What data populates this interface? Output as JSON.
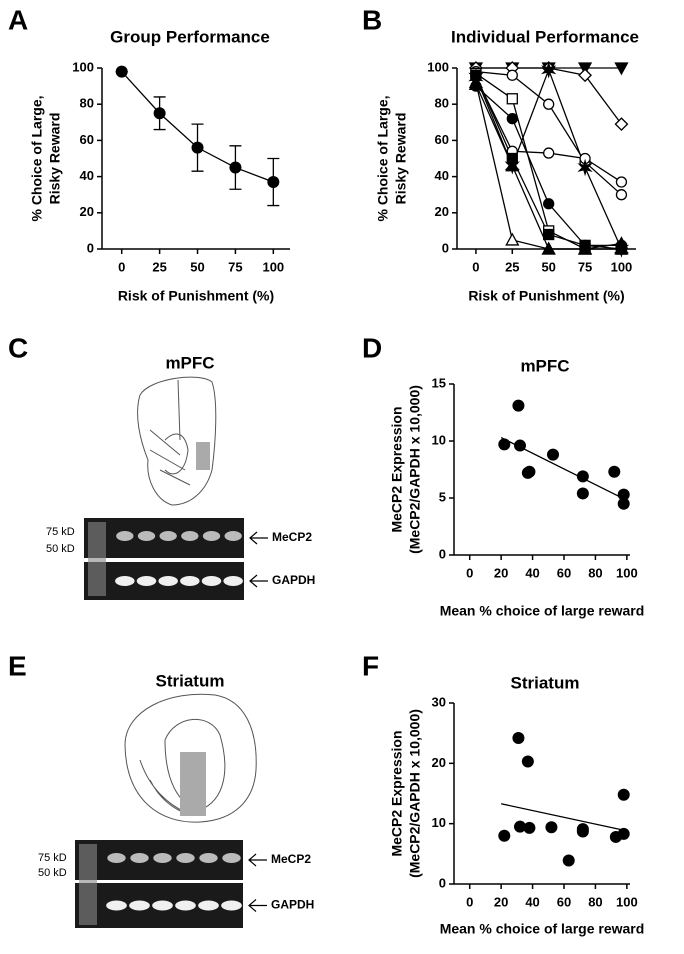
{
  "panel_labels": [
    "A",
    "B",
    "C",
    "D",
    "E",
    "F"
  ],
  "blots": [
    {
      "title": "mPFC",
      "markers": [
        "75 kD",
        "50 kD"
      ],
      "bands": [
        "MeCP2",
        "GAPDH"
      ]
    },
    {
      "title": "Striatum",
      "markers": [
        "75 kD",
        "50 kD"
      ],
      "bands": [
        "MeCP2",
        "GAPDH"
      ]
    }
  ],
  "chart_data": [
    {
      "type": "line",
      "title": "Group Performance",
      "y_label": [
        "% Choice of Large,",
        "Risky Reward"
      ],
      "x_label": "Risk of Punishment (%)",
      "x": [
        0,
        25,
        50,
        75,
        100
      ],
      "values": [
        98,
        75,
        56,
        45,
        37
      ],
      "errors": [
        0,
        9,
        13,
        12,
        13
      ],
      "color": "#000000",
      "xlim": [
        -13,
        111
      ],
      "ylim": [
        0,
        100
      ],
      "xticks": [
        0,
        25,
        50,
        75,
        100
      ],
      "yticks": [
        0,
        20,
        40,
        60,
        80,
        100
      ]
    },
    {
      "type": "multiline",
      "title": "Individual Performance",
      "y_label": [
        "% Choice of Large,",
        "Risky Reward"
      ],
      "x_label": "Risk of Punishment (%)",
      "x": [
        0,
        25,
        50,
        75,
        100
      ],
      "series": [
        {
          "marker": "triangle-down",
          "filled": true,
          "color": "#000000",
          "values": [
            100,
            100,
            100,
            100,
            100
          ]
        },
        {
          "marker": "diamond",
          "filled": false,
          "color": "#000000",
          "values": [
            100,
            100,
            100,
            96,
            69
          ]
        },
        {
          "marker": "circle",
          "filled": false,
          "color": "#000000",
          "values": [
            98,
            96,
            80,
            48,
            30
          ]
        },
        {
          "marker": "circle",
          "filled": false,
          "color": "#000000",
          "values": [
            95,
            54,
            53,
            50,
            37
          ]
        },
        {
          "marker": "circle",
          "filled": true,
          "color": "#000000",
          "values": [
            90,
            72,
            25,
            2,
            2
          ]
        },
        {
          "marker": "square",
          "filled": false,
          "color": "#000000",
          "values": [
            97,
            83,
            10,
            0,
            0
          ]
        },
        {
          "marker": "star",
          "filled": true,
          "color": "#000000",
          "values": [
            95,
            46,
            99,
            45,
            0
          ]
        },
        {
          "marker": "triangle",
          "filled": false,
          "color": "#000000",
          "values": [
            92,
            5,
            0,
            0,
            0
          ]
        },
        {
          "marker": "triangle",
          "filled": true,
          "color": "#000000",
          "values": [
            91,
            46,
            0,
            0,
            3
          ]
        },
        {
          "marker": "square",
          "filled": true,
          "color": "#000000",
          "values": [
            96,
            50,
            8,
            2,
            0
          ]
        }
      ],
      "xlim": [
        -13,
        110
      ],
      "ylim": [
        0,
        100
      ],
      "xticks": [
        0,
        25,
        50,
        75,
        100
      ],
      "yticks": [
        0,
        20,
        40,
        60,
        80,
        100
      ]
    },
    {
      "type": "scatter",
      "title": "mPFC",
      "y_label": [
        "MeCP2 Expression",
        "(MeCP2/GAPDH x 10,000)"
      ],
      "x_label": "Mean % choice of large reward",
      "x": [
        22,
        31,
        32,
        37,
        38,
        53,
        72,
        72,
        92,
        98,
        98
      ],
      "values": [
        9.7,
        13.1,
        9.6,
        7.2,
        7.3,
        8.8,
        6.9,
        5.4,
        7.3,
        5.3,
        4.5
      ],
      "color": "#000000",
      "fit": {
        "x": [
          20,
          100
        ],
        "y": [
          10.3,
          4.8
        ]
      },
      "xlim": [
        -10,
        102
      ],
      "ylim": [
        0,
        15
      ],
      "xticks": [
        0,
        20,
        40,
        60,
        80,
        100
      ],
      "yticks": [
        0,
        5,
        10,
        15
      ]
    },
    {
      "type": "scatter",
      "title": "Striatum",
      "y_label": [
        "MeCP2 Expression",
        "(MeCP2/GAPDH x 10,000)"
      ],
      "x_label": "Mean % choice of large reward",
      "x": [
        22,
        31,
        32,
        37,
        38,
        52,
        63,
        72,
        72,
        93,
        98,
        98
      ],
      "values": [
        8,
        24.2,
        9.5,
        20.3,
        9.3,
        9.4,
        3.9,
        8.7,
        9.1,
        7.8,
        14.8,
        8.3
      ],
      "color": "#000000",
      "fit": {
        "x": [
          20,
          100
        ],
        "y": [
          13.3,
          8.8
        ]
      },
      "xlim": [
        -10,
        102
      ],
      "ylim": [
        0,
        30
      ],
      "xticks": [
        0,
        20,
        40,
        60,
        80,
        100
      ],
      "yticks": [
        0,
        10,
        20,
        30
      ]
    }
  ]
}
